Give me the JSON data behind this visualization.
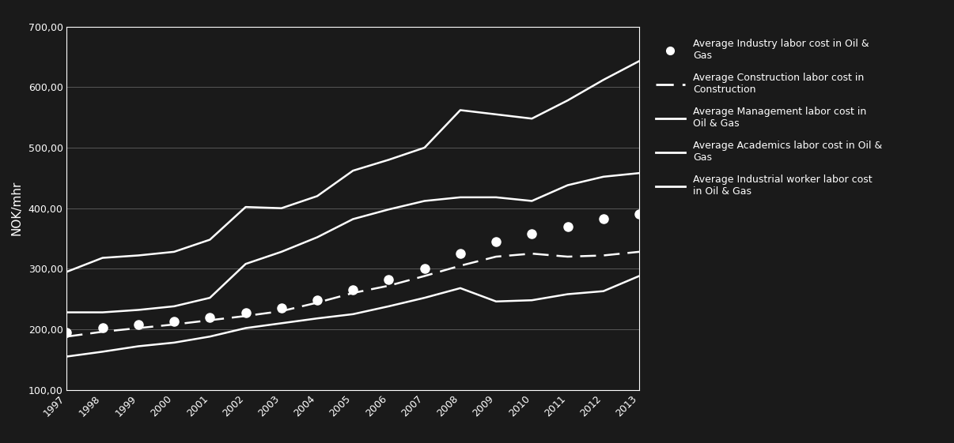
{
  "years": [
    1997,
    1998,
    1999,
    2000,
    2001,
    2002,
    2003,
    2004,
    2005,
    2006,
    2007,
    2008,
    2009,
    2010,
    2011,
    2012,
    2013
  ],
  "management": [
    295,
    318,
    322,
    328,
    348,
    402,
    400,
    420,
    462,
    480,
    500,
    562,
    555,
    548,
    578,
    612,
    643
  ],
  "academics": [
    228,
    228,
    232,
    238,
    252,
    308,
    328,
    352,
    382,
    398,
    412,
    418,
    418,
    412,
    438,
    452,
    458
  ],
  "industry_labor": [
    195,
    202,
    208,
    213,
    220,
    228,
    235,
    248,
    265,
    282,
    300,
    325,
    345,
    358,
    370,
    382,
    390
  ],
  "construction_labor": [
    188,
    196,
    202,
    208,
    215,
    222,
    230,
    244,
    260,
    272,
    288,
    305,
    320,
    325,
    320,
    322,
    328
  ],
  "industrial_worker": [
    155,
    163,
    172,
    178,
    188,
    202,
    210,
    218,
    225,
    238,
    252,
    268,
    246,
    248,
    258,
    263,
    288
  ],
  "ylabel": "NOK/mhr",
  "ylim": [
    100,
    700
  ],
  "yticks": [
    100,
    200,
    300,
    400,
    500,
    600,
    700
  ],
  "background_color": "#1a1a1a",
  "text_color": "#ffffff",
  "grid_color": "#808080",
  "line_color": "#ffffff",
  "legend_entries": [
    "Average Industry labor cost in Oil &\nGas",
    "Average Construction labor cost in\nConstruction",
    "Average Management labor cost in\nOil & Gas",
    "Average Academics labor cost in Oil &\nGas",
    "Average Industrial worker labor cost\nin Oil & Gas"
  ]
}
